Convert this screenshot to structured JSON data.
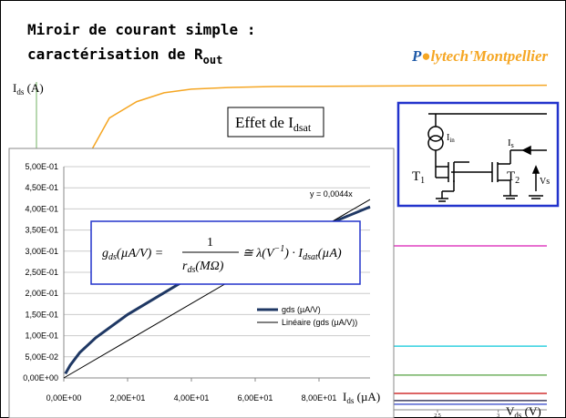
{
  "header": {
    "title_line1": "Miroir de courant simple :",
    "title_line2": "caractérisation de R",
    "title_sub": "out",
    "logo_a": "P",
    "logo_b": "lytech'Montpellier"
  },
  "background_chart": {
    "y_label": "I",
    "y_label_sub": "ds",
    "y_label_unit": " (A)",
    "x_label": "V",
    "x_label_sub": "ds",
    "x_label_unit": " (V)",
    "xlim": [
      -0.8,
      3.4
    ],
    "ylim": [
      0,
      1
    ],
    "xticks": [
      2.5,
      3
    ],
    "series": [
      {
        "color": "#f5a623",
        "x": [
          -0.35,
          -0.2,
          0.025,
          0.25,
          0.475,
          0.775,
          1.15,
          3.4
        ],
        "values": [
          0.79,
          0.89,
          0.94,
          0.967,
          0.978,
          0.983,
          0.986,
          0.99
        ]
      },
      {
        "color": "#e040c0",
        "x": [
          -0.8,
          3.4
        ],
        "values": [
          0.5,
          0.5
        ]
      },
      {
        "color": "#30d0e0",
        "x": [
          -0.8,
          3.4
        ],
        "values": [
          0.194,
          0.194
        ]
      },
      {
        "color": "#70b060",
        "x": [
          -0.8,
          3.4
        ],
        "values": [
          0.106,
          0.106
        ]
      },
      {
        "color": "#d03030",
        "x": [
          -0.8,
          3.4
        ],
        "values": [
          0.05,
          0.05
        ]
      },
      {
        "color": "#404060",
        "x": [
          -0.8,
          3.4
        ],
        "values": [
          0.028,
          0.028
        ]
      },
      {
        "color": "#5060d0",
        "x": [
          -0.8,
          3.4
        ],
        "values": [
          0.017,
          0.017
        ]
      }
    ]
  },
  "effect_box": {
    "text": "Effet de I",
    "sub": "dsat"
  },
  "circuit": {
    "i_in": "I",
    "i_in_sub": "in",
    "i_s": "I",
    "i_s_sub": "s",
    "t1": "T",
    "t1_sub": "1",
    "t2": "T",
    "t2_sub": "2",
    "vs": "Vs"
  },
  "chart_data": {
    "type": "line",
    "x_label": "I",
    "x_label_sub": "ds",
    "x_label_unit": " (µA)",
    "xlim": [
      0,
      96
    ],
    "ylim": [
      0,
      0.5
    ],
    "xticks": [
      {
        "value": 0,
        "label": "0,00E+00"
      },
      {
        "value": 20,
        "label": "2,00E+01"
      },
      {
        "value": 40,
        "label": "4,00E+01"
      },
      {
        "value": 60,
        "label": "6,00E+01"
      },
      {
        "value": 80,
        "label": "8,00E+01"
      }
    ],
    "yticks": [
      {
        "value": 0,
        "label": "0,00E+00"
      },
      {
        "value": 0.05,
        "label": "5,00E-02"
      },
      {
        "value": 0.1,
        "label": "1,00E-01"
      },
      {
        "value": 0.15,
        "label": "1,50E-01"
      },
      {
        "value": 0.2,
        "label": "2,00E-01"
      },
      {
        "value": 0.25,
        "label": "2,50E-01"
      },
      {
        "value": 0.3,
        "label": "3,00E-01"
      },
      {
        "value": 0.35,
        "label": "3,50E-01"
      },
      {
        "value": 0.4,
        "label": "4,00E-01"
      },
      {
        "value": 0.45,
        "label": "4,50E-01"
      },
      {
        "value": 0.5,
        "label": "5,00E-01"
      }
    ],
    "grid": true,
    "trend_label": "y = 0,0044x",
    "series": [
      {
        "name": "gds (µA/V)",
        "color": "#1f3864",
        "width": 3,
        "x": [
          0.5,
          2,
          5,
          10,
          20,
          40,
          60,
          80,
          96
        ],
        "values": [
          0.01,
          0.03,
          0.06,
          0.095,
          0.15,
          0.24,
          0.3,
          0.355,
          0.405
        ]
      },
      {
        "name": "Linéaire (gds (µA/V))",
        "color": "#000000",
        "width": 1,
        "x": [
          0,
          96
        ],
        "values": [
          0,
          0.4224
        ]
      }
    ]
  },
  "formula": {
    "lhs": "g",
    "lhs_sub": "ds",
    "lhs_unit": "(µA/V) =",
    "num": "1",
    "den": "r",
    "den_sub": "ds",
    "den_unit": "(MΩ)",
    "rhs": "≅ λ(V",
    "rhs_sup": "−1",
    "rhs2": ") · I",
    "rhs_sub": "dsat",
    "rhs3": "(µA)"
  }
}
